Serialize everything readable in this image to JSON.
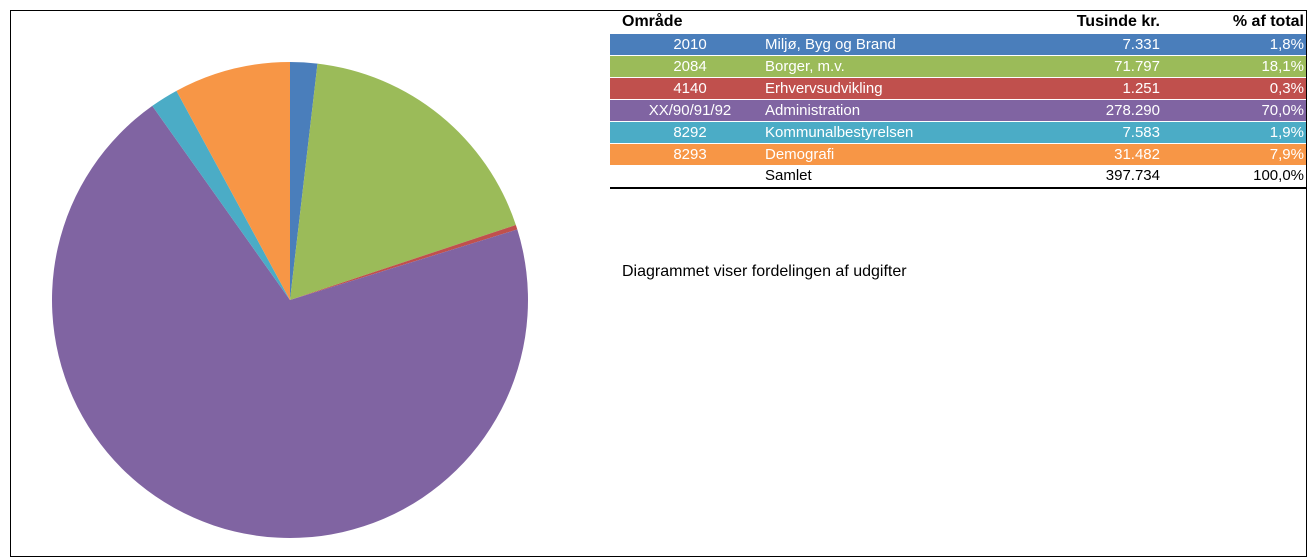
{
  "chart_data": {
    "type": "pie",
    "headers": [
      "Område",
      "Tusinde kr.",
      "% af total"
    ],
    "codes": [
      "2010",
      "2084",
      "4140",
      "XX/90/91/92",
      "8292",
      "8293"
    ],
    "categories": [
      "Miljø, Byg og Brand",
      "Borger, m.v.",
      "Erhvervsudvikling",
      "Administration",
      "Kommunalbestyrelsen",
      "Demografi"
    ],
    "values": [
      7331,
      71797,
      1251,
      278290,
      7583,
      31482
    ],
    "value_labels": [
      "7.331",
      "71.797",
      "1.251",
      "278.290",
      "7.583",
      "31.482"
    ],
    "percent_labels": [
      "1,8%",
      "18,1%",
      "0,3%",
      "70,0%",
      "1,9%",
      "7,9%"
    ],
    "colors": [
      "#4a7ebb",
      "#9bbb59",
      "#c0504d",
      "#8064a2",
      "#4bacc6",
      "#f79646"
    ],
    "total": {
      "label": "Samlet",
      "value_label": "397.734",
      "percent_label": "100,0%"
    },
    "note": "Diagrammet viser fordelingen af udgifter"
  }
}
